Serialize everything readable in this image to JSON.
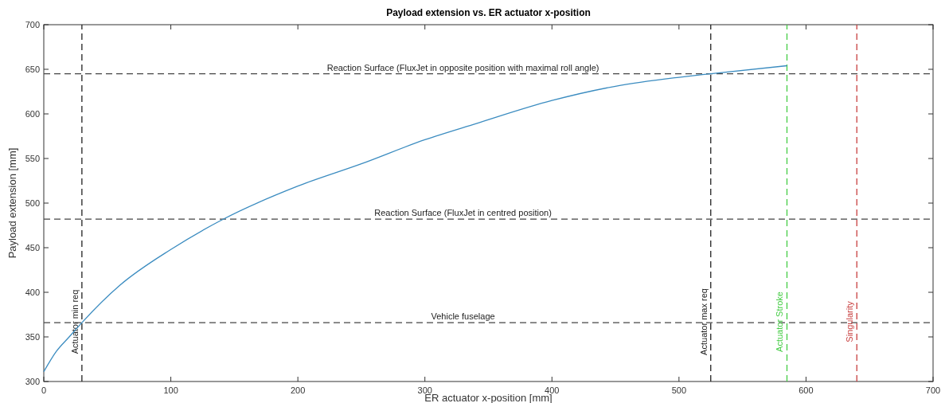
{
  "chart_data": {
    "type": "line",
    "title": "Payload extension vs. ER actuator x-position",
    "xlabel": "ER actuator x-position [mm]",
    "ylabel": "Payload extension [mm]",
    "x": [
      0,
      10,
      20,
      30,
      60,
      100,
      140,
      200,
      250,
      300,
      340,
      400,
      450,
      500,
      525,
      585
    ],
    "series": [
      {
        "color": "#3b8cc0",
        "values": [
          311,
          334,
          350,
          366,
          408,
          448,
          481,
          519,
          544,
          571,
          589,
          615,
          631,
          641,
          645,
          654
        ]
      }
    ],
    "xlim": [
      0,
      700
    ],
    "ylim": [
      300,
      700
    ],
    "xticks": [
      0,
      100,
      200,
      300,
      400,
      500,
      600,
      700
    ],
    "yticks": [
      300,
      350,
      400,
      450,
      500,
      550,
      600,
      650,
      700
    ],
    "grid": false,
    "marker": "none",
    "line_style": "solid",
    "ref_lines": [
      {
        "axis": "y",
        "value": 645,
        "label": "Reaction Surface (FluxJet in opposite position with maximal roll angle)",
        "color": "#444444",
        "line_style": "dashed"
      },
      {
        "axis": "y",
        "value": 482,
        "label": "Reaction Surface (FluxJet in centred position)",
        "color": "#444444",
        "line_style": "dashed"
      },
      {
        "axis": "y",
        "value": 366,
        "label": "Vehicle fuselage",
        "color": "#444444",
        "line_style": "dashed"
      },
      {
        "axis": "x",
        "value": 30,
        "label": "Actuator min req",
        "color": "#222222",
        "line_style": "dashed"
      },
      {
        "axis": "x",
        "value": 525,
        "label": "Actuator max req",
        "color": "#222222",
        "line_style": "dashed"
      },
      {
        "axis": "x",
        "value": 585,
        "label": "Actuator Stroke",
        "color": "#44cc44",
        "line_style": "dashed"
      },
      {
        "axis": "x",
        "value": 640,
        "label": "Singularity",
        "color": "#c84040",
        "line_style": "dashed"
      }
    ]
  }
}
